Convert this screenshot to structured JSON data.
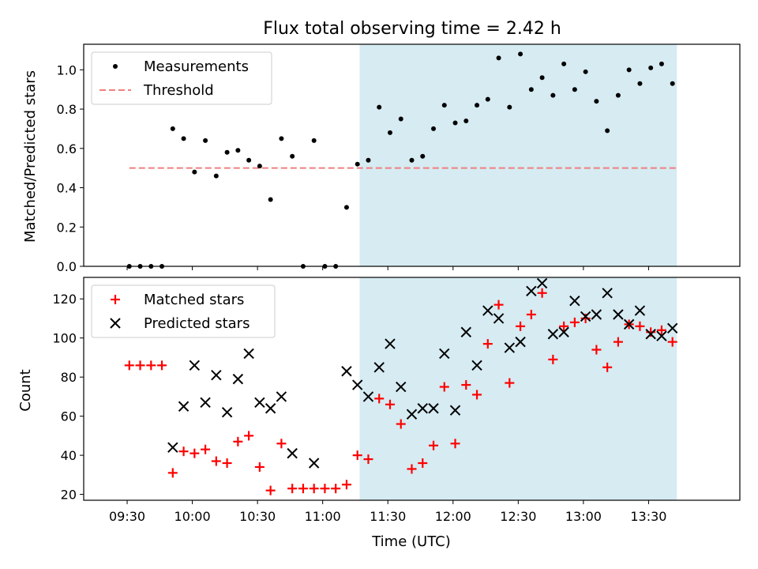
{
  "title": "Flux total observing time = 2.42 h",
  "xlabel": "Time (UTC)",
  "x_ticks": [
    "09:30",
    "10:00",
    "10:30",
    "11:00",
    "11:30",
    "12:00",
    "12:30",
    "13:00",
    "13:30"
  ],
  "highlight": {
    "start": "11:17",
    "end": "13:43",
    "color": "#add8e6"
  },
  "colors": {
    "measurement": "#000000",
    "threshold": "#f08080",
    "matched": "#ff0000",
    "predicted": "#000000"
  },
  "chart_data": [
    {
      "type": "scatter",
      "ylabel": "Matched/Predicted stars",
      "ylim": [
        0,
        1.13
      ],
      "yticks": [
        "0.0",
        "0.2",
        "0.4",
        "0.6",
        "0.8",
        "1.0"
      ],
      "legend": {
        "placement": "upper-left",
        "entries": [
          "Measurements",
          "Threshold"
        ]
      },
      "threshold": {
        "value": 0.5,
        "x_start": "09:31",
        "x_end": "13:43"
      },
      "series": [
        {
          "name": "Measurements",
          "x": [
            "09:31",
            "09:36",
            "09:41",
            "09:46",
            "09:51",
            "09:56",
            "10:01",
            "10:06",
            "10:11",
            "10:16",
            "10:21",
            "10:26",
            "10:31",
            "10:36",
            "10:41",
            "10:46",
            "10:51",
            "10:56",
            "11:01",
            "11:06",
            "11:11",
            "11:16",
            "11:21",
            "11:26",
            "11:31",
            "11:36",
            "11:41",
            "11:46",
            "11:51",
            "11:56",
            "12:01",
            "12:06",
            "12:11",
            "12:16",
            "12:21",
            "12:26",
            "12:31",
            "12:36",
            "12:41",
            "12:46",
            "12:51",
            "12:56",
            "13:01",
            "13:06",
            "13:11",
            "13:16",
            "13:21",
            "13:26",
            "13:31",
            "13:36",
            "13:41"
          ],
          "values": [
            0,
            0,
            0,
            0,
            0.7,
            0.65,
            0.48,
            0.64,
            0.46,
            0.58,
            0.59,
            0.54,
            0.51,
            0.34,
            0.65,
            0.56,
            0,
            0.64,
            0,
            0,
            0.3,
            0.52,
            0.54,
            0.81,
            0.68,
            0.75,
            0.54,
            0.56,
            0.7,
            0.82,
            0.73,
            0.74,
            0.82,
            0.85,
            1.06,
            0.81,
            1.08,
            0.9,
            0.96,
            0.87,
            1.03,
            0.9,
            0.99,
            0.84,
            0.69,
            0.87,
            1.0,
            0.93,
            1.01,
            1.03,
            0.93
          ]
        }
      ]
    },
    {
      "type": "scatter",
      "ylabel": "Count",
      "ylim": [
        17,
        131
      ],
      "yticks": [
        "20",
        "40",
        "60",
        "80",
        "100",
        "120"
      ],
      "legend": {
        "placement": "upper-left",
        "entries": [
          "Matched stars",
          "Predicted stars"
        ]
      },
      "series": [
        {
          "name": "Matched stars",
          "x": [
            "09:31",
            "09:36",
            "09:41",
            "09:46",
            "09:51",
            "09:56",
            "10:01",
            "10:06",
            "10:11",
            "10:16",
            "10:21",
            "10:26",
            "10:31",
            "10:36",
            "10:41",
            "10:46",
            "10:51",
            "10:56",
            "11:01",
            "11:06",
            "11:11",
            "11:16",
            "11:21",
            "11:26",
            "11:31",
            "11:36",
            "11:41",
            "11:46",
            "11:51",
            "11:56",
            "12:01",
            "12:06",
            "12:11",
            "12:16",
            "12:21",
            "12:26",
            "12:31",
            "12:36",
            "12:41",
            "12:46",
            "12:51",
            "12:56",
            "13:01",
            "13:06",
            "13:11",
            "13:16",
            "13:21",
            "13:26",
            "13:31",
            "13:36",
            "13:41"
          ],
          "values": [
            86,
            86,
            86,
            86,
            31,
            42,
            41,
            43,
            37,
            36,
            47,
            50,
            34,
            22,
            46,
            23,
            23,
            23,
            23,
            23,
            25,
            40,
            38,
            69,
            66,
            56,
            33,
            36,
            45,
            75,
            46,
            76,
            71,
            97,
            117,
            77,
            106,
            112,
            123,
            89,
            106,
            108,
            110,
            94,
            85,
            98,
            107,
            106,
            103,
            104,
            98
          ]
        },
        {
          "name": "Predicted stars",
          "x": [
            "09:51",
            "09:56",
            "10:01",
            "10:06",
            "10:11",
            "10:16",
            "10:21",
            "10:26",
            "10:31",
            "10:36",
            "10:41",
            "10:46",
            "10:56",
            "11:11",
            "11:16",
            "11:21",
            "11:26",
            "11:31",
            "11:36",
            "11:41",
            "11:46",
            "11:51",
            "11:56",
            "12:01",
            "12:06",
            "12:11",
            "12:16",
            "12:21",
            "12:26",
            "12:31",
            "12:36",
            "12:41",
            "12:46",
            "12:51",
            "12:56",
            "13:01",
            "13:06",
            "13:11",
            "13:16",
            "13:21",
            "13:26",
            "13:31",
            "13:36",
            "13:41"
          ],
          "values": [
            44,
            65,
            86,
            67,
            81,
            62,
            79,
            92,
            67,
            64,
            70,
            41,
            36,
            83,
            76,
            70,
            85,
            97,
            75,
            61,
            64,
            64,
            92,
            63,
            103,
            86,
            114,
            110,
            95,
            98,
            124,
            128,
            102,
            103,
            119,
            111,
            112,
            123,
            112,
            107,
            114,
            102,
            101,
            105
          ]
        }
      ]
    }
  ]
}
